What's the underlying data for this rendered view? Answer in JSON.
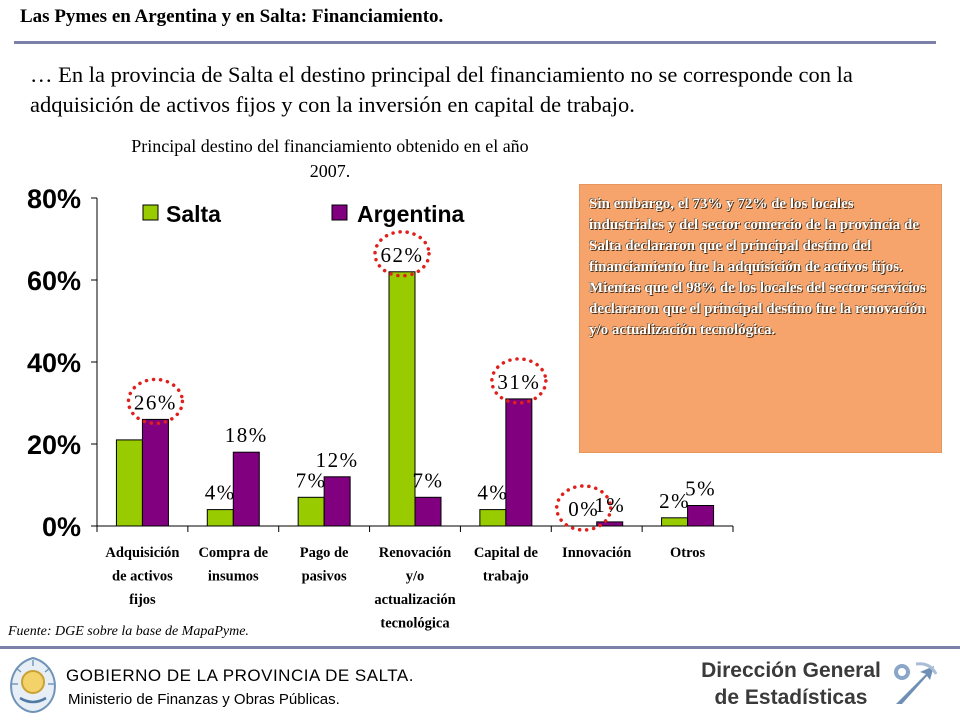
{
  "header": {
    "title": "Las Pymes en Argentina y en Salta: Financiamiento."
  },
  "intro": {
    "text": "… En la provincia de Salta el destino principal del financiamiento no se corresponde con la adquisición de activos fijos y con la inversión en capital de trabajo."
  },
  "chart_data": {
    "type": "bar",
    "title": "Principal destino del financiamiento obtenido en el año 2007.",
    "xlabel": "",
    "ylabel": "",
    "categories": [
      [
        "Adquisición",
        "de activos",
        "fijos"
      ],
      [
        "Compra de",
        "insumos"
      ],
      [
        "Pago de",
        "pasivos"
      ],
      [
        "Renovación",
        "y/o",
        "actualización",
        "tecnológica"
      ],
      [
        "Capital de",
        "trabajo"
      ],
      [
        "Innovación"
      ],
      [
        "Otros"
      ]
    ],
    "series": [
      {
        "name": "Salta",
        "color": "#99cc00",
        "values": [
          21,
          4,
          7,
          62,
          4,
          0,
          2
        ]
      },
      {
        "name": "Argentina",
        "color": "#800080",
        "values": [
          26,
          18,
          12,
          7,
          31,
          1,
          5
        ]
      }
    ],
    "data_labels": [
      {
        "category": 0,
        "series": 1,
        "text": "26%",
        "circled": true
      },
      {
        "category": 1,
        "series": 0,
        "text": "4%",
        "circled": false
      },
      {
        "category": 1,
        "series": 1,
        "text": "18%",
        "circled": false
      },
      {
        "category": 2,
        "series": 0,
        "text": "7%",
        "circled": false
      },
      {
        "category": 2,
        "series": 1,
        "text": "12%",
        "circled": false
      },
      {
        "category": 3,
        "series": 0,
        "text": "62%",
        "circled": true
      },
      {
        "category": 3,
        "series": 1,
        "text": "7%",
        "circled": false
      },
      {
        "category": 4,
        "series": 0,
        "text": "4%",
        "circled": false
      },
      {
        "category": 4,
        "series": 1,
        "text": "31%",
        "circled": true
      },
      {
        "category": 5,
        "series": 0,
        "text": "0%",
        "circled": true
      },
      {
        "category": 5,
        "series": 1,
        "text": "1%",
        "circled": false
      },
      {
        "category": 6,
        "series": 0,
        "text": "2%",
        "circled": false
      },
      {
        "category": 6,
        "series": 1,
        "text": "5%",
        "circled": false
      }
    ],
    "ylim": [
      0,
      80
    ],
    "yticks": [
      0,
      20,
      40,
      60,
      80
    ],
    "ytick_labels": [
      "0%",
      "20%",
      "40%",
      "60%",
      "80%"
    ],
    "grid": false,
    "legend": "top",
    "highlight_color": "#e0201b"
  },
  "callout": {
    "text": "Sin embargo, el 73% y 72% de los locales industriales y del sector comercio de la provincia de Salta declararon que el principal destino del financiamiento fue la adquisición de activos fijos. Mientas que el 98% de los locales del sector servicios declararon que el principal destino fue la renovación y/o actualización tecnológica."
  },
  "source": {
    "text": "Fuente: DGE  sobre la base de MapaPyme."
  },
  "footer": {
    "gov_line1": "GOBIERNO DE LA PROVINCIA DE SALTA.",
    "gov_line2": "Ministerio de Finanzas y Obras Públicas.",
    "gov_logo_icon": "provincial-coat-of-arms-icon",
    "dir_line1": "Dirección General",
    "dir_line2": "de Estadísticas",
    "dir_logo_icon": "statistics-swoosh-icon"
  }
}
